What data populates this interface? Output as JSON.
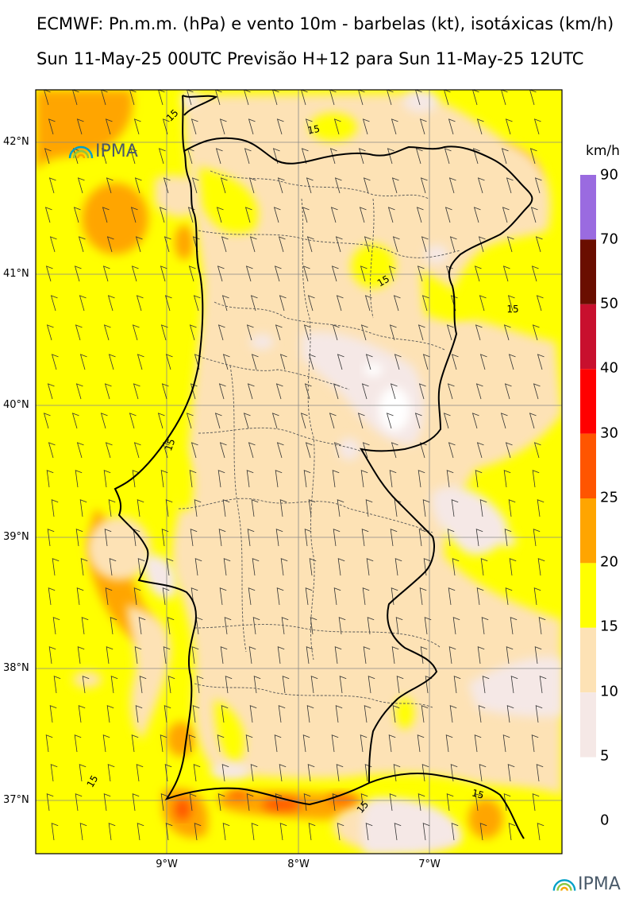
{
  "title_line1": "ECMWF: Pn.m.m. (hPa) e vento 10m - barbelas (kt), isotáxicas (km/h)",
  "title_line2": "Sun 11-May-25 00UTC Previsão H+12 para Sun 11-May-25 12UTC",
  "logo_text": "IPMA",
  "latitudes": [
    "42°N",
    "41°N",
    "40°N",
    "39°N",
    "38°N",
    "37°N"
  ],
  "longitudes": [
    "9°W",
    "8°W",
    "7°W"
  ],
  "colorbar": {
    "unit": "km/h",
    "levels": [
      "90",
      "70",
      "50",
      "40",
      "30",
      "25",
      "20",
      "15",
      "10",
      "5",
      "0"
    ],
    "colors": [
      "#9a6be0",
      "#6a0e00",
      "#c8102e",
      "#ff0000",
      "#ff5500",
      "#ffa500",
      "#ffff00",
      "#fde2b5",
      "#f5e8e6"
    ]
  },
  "field_colors": {
    "band_5_10": "#f5e8e6",
    "band_10_15": "#fde2b5",
    "band_15_20": "#ffff00",
    "band_20_25": "#ffa500",
    "band_25_30": "#ff5500",
    "band_30_40": "#ff0000"
  },
  "contour_labels": [
    "15",
    "15",
    "15",
    "15",
    "15",
    "15",
    "15",
    "15"
  ]
}
